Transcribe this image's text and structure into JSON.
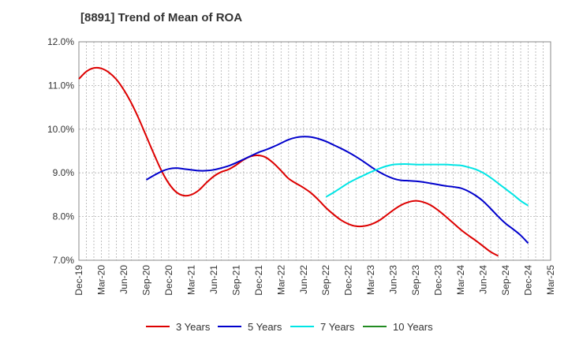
{
  "chart_data": {
    "type": "line",
    "title": "[8891]  Trend of Mean of ROA",
    "xlabel": "",
    "ylabel": "",
    "ylim": [
      7.0,
      12.0
    ],
    "yticks": [
      "7.0%",
      "8.0%",
      "9.0%",
      "10.0%",
      "11.0%",
      "12.0%"
    ],
    "ytick_values": [
      7.0,
      8.0,
      9.0,
      10.0,
      11.0,
      12.0
    ],
    "xticks": [
      "Dec-19",
      "Mar-20",
      "Jun-20",
      "Sep-20",
      "Dec-20",
      "Mar-21",
      "Jun-21",
      "Sep-21",
      "Dec-21",
      "Mar-22",
      "Jun-22",
      "Sep-22",
      "Dec-22",
      "Mar-23",
      "Jun-23",
      "Sep-23",
      "Dec-23",
      "Mar-24",
      "Jun-24",
      "Sep-24",
      "Dec-24",
      "Mar-25"
    ],
    "grid": true,
    "legend_position": "bottom",
    "series": [
      {
        "name": "3 Years",
        "color": "#dd0000",
        "start_index": 0,
        "values": [
          11.15,
          11.32,
          11.4,
          11.39,
          11.3,
          11.14,
          10.9,
          10.6,
          10.24,
          9.84,
          9.44,
          9.06,
          8.76,
          8.56,
          8.48,
          8.5,
          8.6,
          8.77,
          8.92,
          9.02,
          9.08,
          9.18,
          9.3,
          9.38,
          9.4,
          9.35,
          9.22,
          9.05,
          8.87,
          8.76,
          8.66,
          8.54,
          8.38,
          8.2,
          8.05,
          7.92,
          7.83,
          7.78,
          7.78,
          7.82,
          7.9,
          8.02,
          8.15,
          8.26,
          8.33,
          8.36,
          8.33,
          8.26,
          8.14,
          8.0,
          7.85,
          7.7,
          7.57,
          7.45,
          7.32,
          7.19,
          7.1
        ]
      },
      {
        "name": "5 Years",
        "color": "#0000cc",
        "start_index": 9,
        "values": [
          8.84,
          8.94,
          9.03,
          9.09,
          9.11,
          9.09,
          9.07,
          9.05,
          9.05,
          9.07,
          9.11,
          9.16,
          9.23,
          9.31,
          9.39,
          9.47,
          9.53,
          9.6,
          9.68,
          9.76,
          9.81,
          9.83,
          9.82,
          9.78,
          9.72,
          9.64,
          9.56,
          9.47,
          9.37,
          9.26,
          9.14,
          9.03,
          8.94,
          8.87,
          8.83,
          8.82,
          8.81,
          8.79,
          8.76,
          8.73,
          8.7,
          8.68,
          8.65,
          8.58,
          8.48,
          8.35,
          8.18,
          8.0,
          7.84,
          7.71,
          7.57,
          7.39
        ]
      },
      {
        "name": "7 Years",
        "color": "#00e5e5",
        "start_index": 33,
        "values": [
          8.45,
          8.55,
          8.66,
          8.77,
          8.86,
          8.94,
          9.02,
          9.09,
          9.15,
          9.19,
          9.2,
          9.2,
          9.19,
          9.19,
          9.19,
          9.19,
          9.19,
          9.18,
          9.17,
          9.13,
          9.08,
          9.0,
          8.89,
          8.76,
          8.63,
          8.5,
          8.36,
          8.25
        ]
      },
      {
        "name": "10 Years",
        "color": "#228b22",
        "start_index": 0,
        "values": []
      }
    ]
  }
}
